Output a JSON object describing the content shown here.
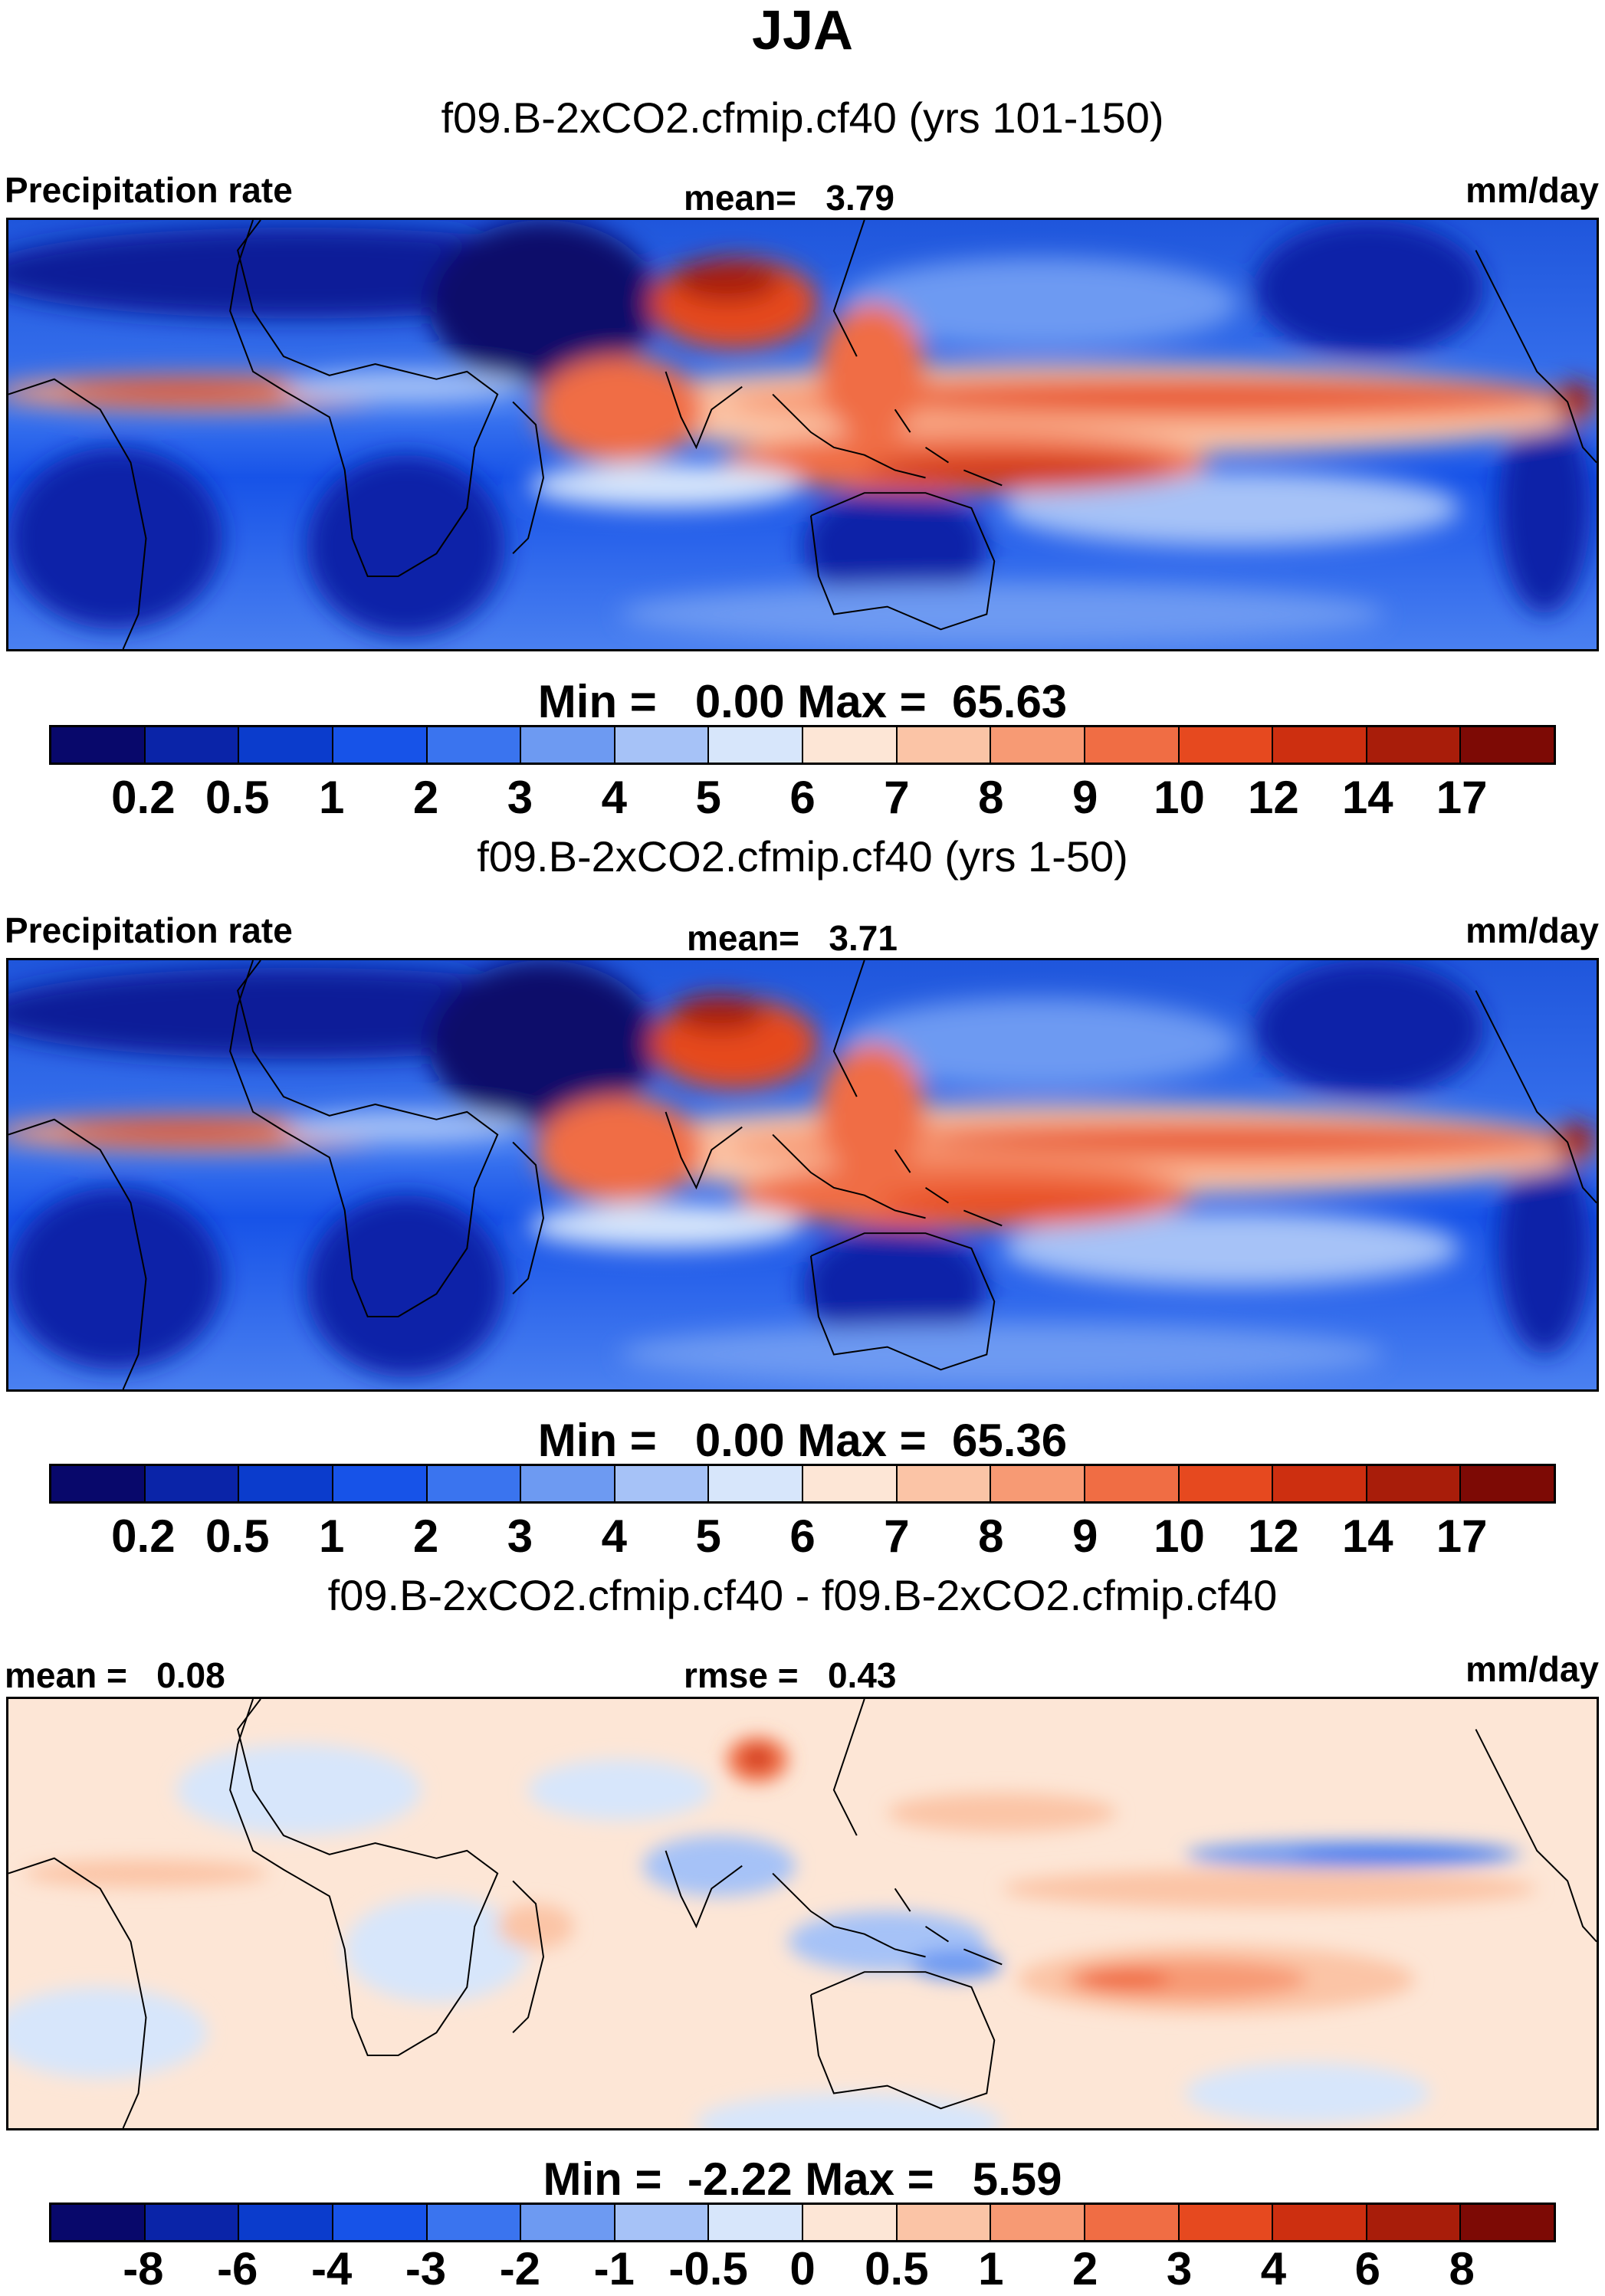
{
  "title": "JJA",
  "units": "mm/day",
  "palette": [
    "#08086b",
    "#0a24a8",
    "#0b3ccc",
    "#1753e8",
    "#3a74ef",
    "#6d9af2",
    "#a6c2f7",
    "#d7e6fb",
    "#fde6d6",
    "#fbc4a6",
    "#f79a74",
    "#f06d44",
    "#e6491f",
    "#cd2f10",
    "#a81d0a",
    "#7d0a05"
  ],
  "panels": [
    {
      "title": "f09.B-2xCO2.cfmip.cf40 (yrs 101-150)",
      "left_label": "Precipitation rate",
      "center_label": "mean=   3.79",
      "right_label": "mm/day",
      "stats": "Min =   0.00 Max =  65.63",
      "colorbar_ticks": [
        "0.2",
        "0.5",
        "1",
        "2",
        "3",
        "4",
        "5",
        "6",
        "7",
        "8",
        "9",
        "10",
        "12",
        "14",
        "17"
      ]
    },
    {
      "title": "f09.B-2xCO2.cfmip.cf40 (yrs 1-50)",
      "left_label": "Precipitation rate",
      "center_label": "mean=   3.71",
      "right_label": "mm/day",
      "stats": "Min =   0.00 Max =  65.36",
      "colorbar_ticks": [
        "0.2",
        "0.5",
        "1",
        "2",
        "3",
        "4",
        "5",
        "6",
        "7",
        "8",
        "9",
        "10",
        "12",
        "14",
        "17"
      ]
    },
    {
      "title": "f09.B-2xCO2.cfmip.cf40 - f09.B-2xCO2.cfmip.cf40",
      "left_label": "mean =   0.08",
      "center_label": "rmse =   0.43",
      "right_label": "mm/day",
      "stats": "Min =  -2.22 Max =   5.59",
      "colorbar_ticks": [
        "-8",
        "-6",
        "-4",
        "-3",
        "-2",
        "-1",
        "-0.5",
        "0",
        "0.5",
        "1",
        "2",
        "3",
        "4",
        "6",
        "8"
      ]
    }
  ]
}
